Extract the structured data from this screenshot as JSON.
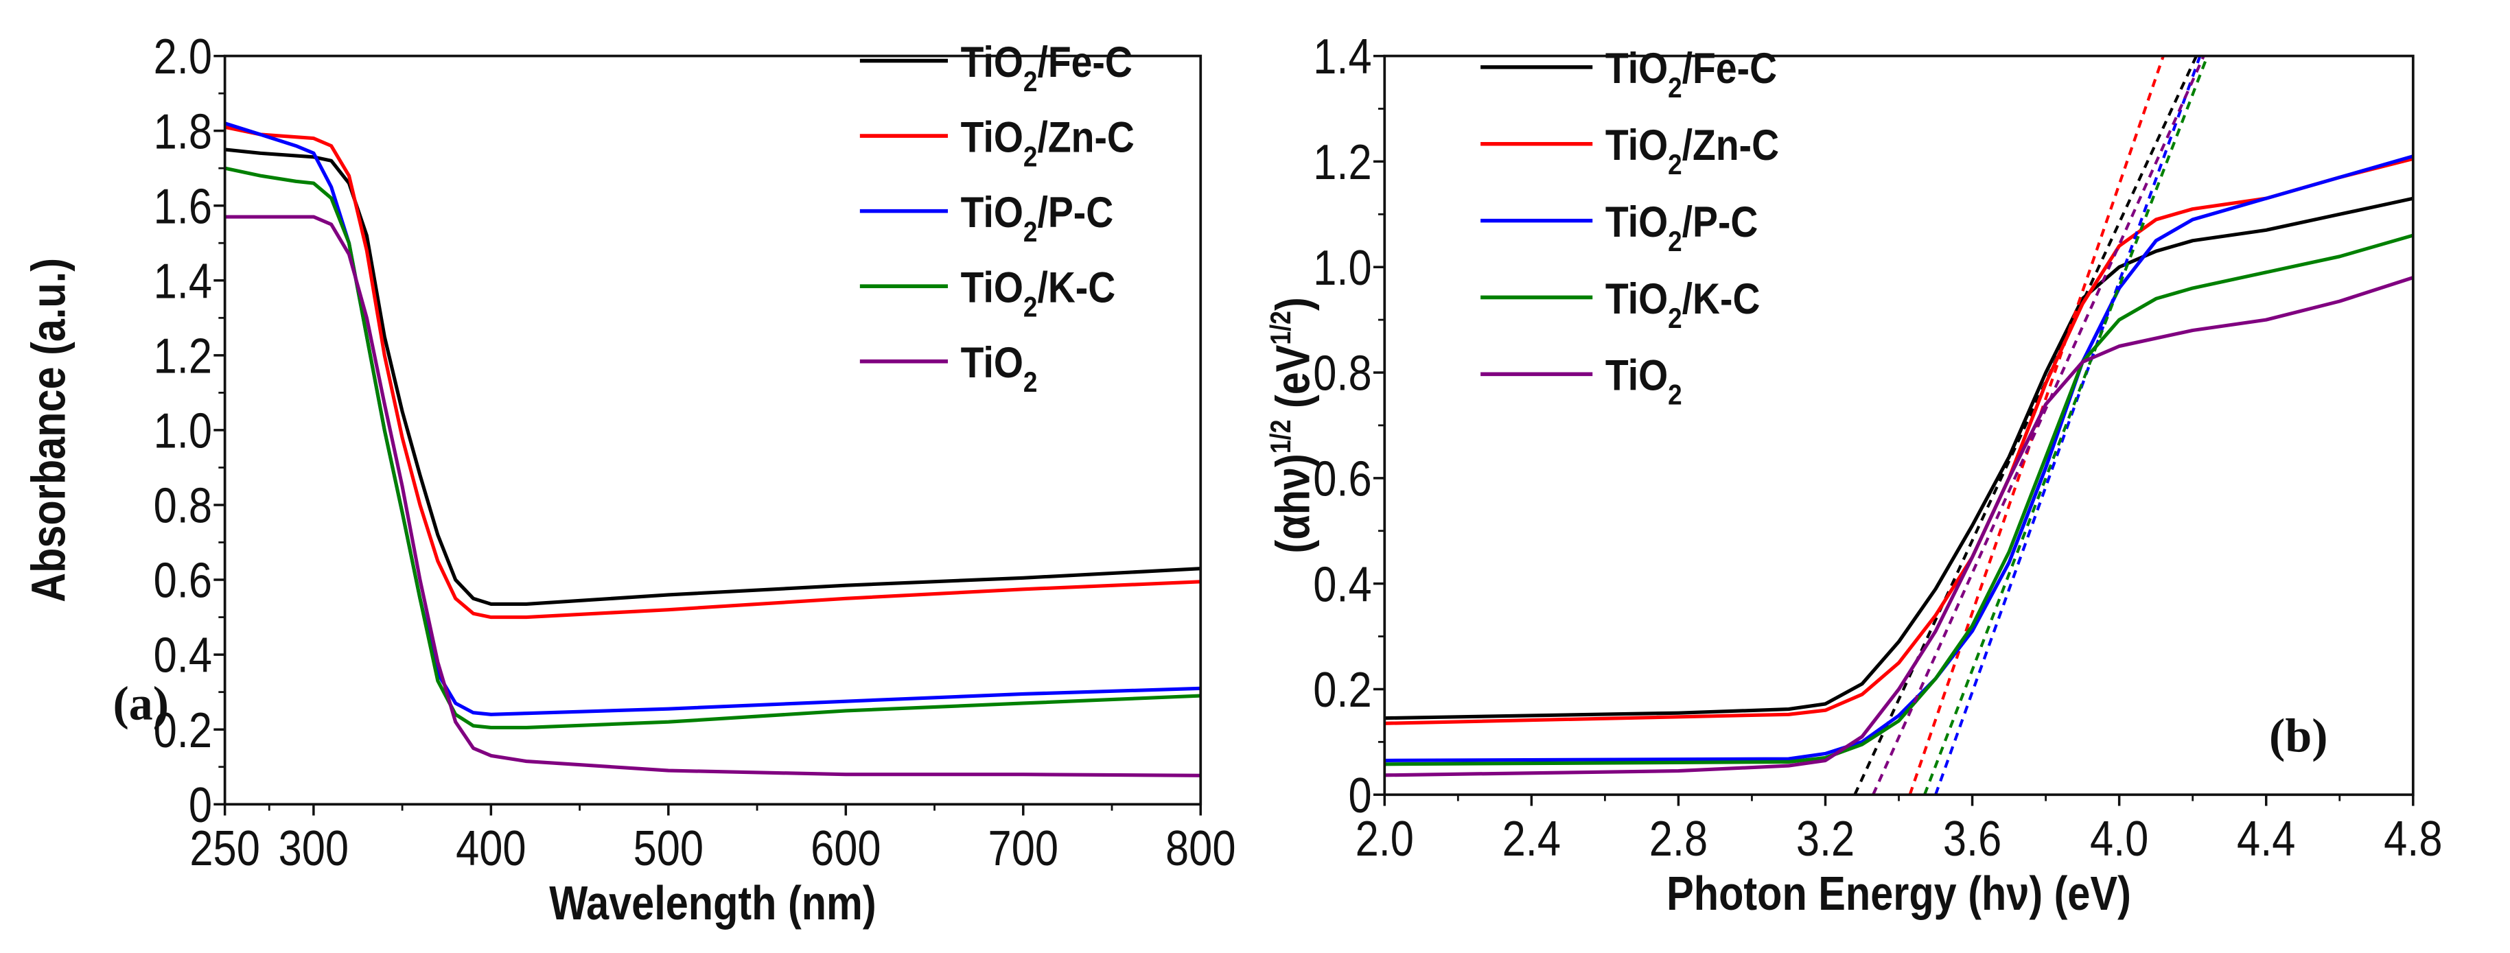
{
  "chart_data": [
    {
      "type": "line",
      "panel_label": "(a)",
      "xlabel": "Wavelength (nm)",
      "ylabel": "Absorbance (a.u.)",
      "xlim": [
        250,
        800
      ],
      "ylim": [
        0,
        2.0
      ],
      "xticks": [
        "250",
        "300",
        "400",
        "500",
        "600",
        "700",
        "800"
      ],
      "xtick_values": [
        250,
        300,
        400,
        500,
        600,
        700,
        800
      ],
      "yticks": [
        "0",
        "0.2",
        "0.4",
        "0.6",
        "0.8",
        "1.0",
        "1.2",
        "1.4",
        "1.6",
        "1.8",
        "2.0"
      ],
      "legend_position": "top-right",
      "series": [
        {
          "name": "TiO2/Fe-C",
          "color": "#000000",
          "x": [
            250,
            270,
            300,
            310,
            320,
            330,
            340,
            350,
            360,
            370,
            380,
            390,
            400,
            420,
            500,
            600,
            700,
            800
          ],
          "y": [
            1.75,
            1.74,
            1.73,
            1.72,
            1.66,
            1.52,
            1.25,
            1.05,
            0.88,
            0.72,
            0.6,
            0.55,
            0.535,
            0.535,
            0.56,
            0.585,
            0.605,
            0.63
          ]
        },
        {
          "name": "TiO2/Zn-C",
          "color": "#ff0000",
          "x": [
            250,
            270,
            300,
            310,
            320,
            330,
            340,
            350,
            360,
            370,
            380,
            390,
            400,
            420,
            500,
            600,
            700,
            800
          ],
          "y": [
            1.81,
            1.79,
            1.78,
            1.76,
            1.68,
            1.48,
            1.2,
            0.98,
            0.8,
            0.65,
            0.55,
            0.51,
            0.5,
            0.5,
            0.52,
            0.55,
            0.575,
            0.595
          ]
        },
        {
          "name": "TiO2/P-C",
          "color": "#0000ff",
          "x": [
            250,
            270,
            290,
            300,
            310,
            320,
            330,
            340,
            350,
            360,
            370,
            380,
            390,
            400,
            420,
            500,
            600,
            700,
            800
          ],
          "y": [
            1.82,
            1.79,
            1.76,
            1.74,
            1.65,
            1.5,
            1.25,
            1.0,
            0.78,
            0.55,
            0.35,
            0.27,
            0.245,
            0.24,
            0.243,
            0.255,
            0.275,
            0.295,
            0.31
          ]
        },
        {
          "name": "TiO2/K-C",
          "color": "#008000",
          "x": [
            250,
            270,
            290,
            300,
            310,
            320,
            330,
            340,
            350,
            360,
            370,
            380,
            390,
            400,
            420,
            500,
            600,
            700,
            800
          ],
          "y": [
            1.7,
            1.68,
            1.665,
            1.66,
            1.62,
            1.5,
            1.25,
            1.0,
            0.78,
            0.55,
            0.33,
            0.24,
            0.21,
            0.205,
            0.205,
            0.22,
            0.25,
            0.27,
            0.29
          ]
        },
        {
          "name": "TiO2",
          "color": "#800080",
          "x": [
            250,
            280,
            300,
            310,
            320,
            330,
            340,
            350,
            360,
            370,
            380,
            390,
            400,
            420,
            500,
            600,
            700,
            800
          ],
          "y": [
            1.57,
            1.57,
            1.57,
            1.55,
            1.47,
            1.3,
            1.07,
            0.85,
            0.6,
            0.38,
            0.22,
            0.15,
            0.13,
            0.115,
            0.09,
            0.08,
            0.08,
            0.077
          ]
        }
      ]
    },
    {
      "type": "line",
      "panel_label": "(b)",
      "xlabel": "Photon Energy (hν) (eV)",
      "ylabel_main": "(αhν)",
      "ylabel_sup": "1/2",
      "ylabel_unit": "(eV",
      "ylabel_unit_sup": "1/2",
      "ylabel_unit_close": ")",
      "xlim": [
        2.0,
        4.8
      ],
      "ylim": [
        0,
        1.4
      ],
      "xticks": [
        "2.0",
        "2.4",
        "2.8",
        "3.2",
        "3.6",
        "4.0",
        "4.4",
        "4.8"
      ],
      "yticks": [
        "0",
        "0.2",
        "0.4",
        "0.6",
        "0.8",
        "1.0",
        "1.2",
        "1.4"
      ],
      "legend_position": "top-left",
      "series": [
        {
          "name": "TiO2/Fe-C",
          "color": "#000000",
          "x": [
            2.0,
            2.8,
            3.1,
            3.2,
            3.3,
            3.4,
            3.5,
            3.6,
            3.7,
            3.8,
            3.9,
            4.0,
            4.1,
            4.2,
            4.4,
            4.6,
            4.8
          ],
          "y": [
            0.145,
            0.155,
            0.162,
            0.172,
            0.21,
            0.29,
            0.39,
            0.51,
            0.64,
            0.8,
            0.94,
            1.0,
            1.03,
            1.05,
            1.07,
            1.1,
            1.13
          ],
          "tangent_x_intercept": 3.28,
          "tangent_x_at_top": 4.21
        },
        {
          "name": "TiO2/Zn-C",
          "color": "#ff0000",
          "x": [
            2.0,
            3.1,
            3.2,
            3.3,
            3.4,
            3.5,
            3.6,
            3.7,
            3.8,
            3.9,
            4.0,
            4.1,
            4.2,
            4.4,
            4.6,
            4.8
          ],
          "y": [
            0.135,
            0.152,
            0.16,
            0.19,
            0.25,
            0.34,
            0.45,
            0.6,
            0.78,
            0.93,
            1.04,
            1.09,
            1.11,
            1.13,
            1.17,
            1.205
          ],
          "tangent_x_intercept": 3.43,
          "tangent_x_at_top": 4.12
        },
        {
          "name": "TiO2/P-C",
          "color": "#0000ff",
          "x": [
            2.0,
            3.1,
            3.2,
            3.3,
            3.4,
            3.5,
            3.6,
            3.7,
            3.8,
            3.9,
            4.0,
            4.1,
            4.2,
            4.4,
            4.6,
            4.8
          ],
          "y": [
            0.065,
            0.068,
            0.078,
            0.1,
            0.15,
            0.22,
            0.31,
            0.44,
            0.62,
            0.82,
            0.96,
            1.05,
            1.09,
            1.13,
            1.17,
            1.21
          ],
          "tangent_x_intercept": 3.5,
          "tangent_x_at_top": 4.22
        },
        {
          "name": "TiO2/K-C",
          "color": "#008000",
          "x": [
            2.0,
            3.1,
            3.2,
            3.3,
            3.4,
            3.5,
            3.6,
            3.7,
            3.8,
            3.9,
            4.0,
            4.1,
            4.2,
            4.4,
            4.6,
            4.8
          ],
          "y": [
            0.058,
            0.062,
            0.07,
            0.095,
            0.14,
            0.22,
            0.32,
            0.46,
            0.64,
            0.82,
            0.9,
            0.94,
            0.96,
            0.99,
            1.02,
            1.06
          ],
          "tangent_x_intercept": 3.47,
          "tangent_x_at_top": 4.24
        },
        {
          "name": "TiO2",
          "color": "#800080",
          "x": [
            2.0,
            2.8,
            3.1,
            3.2,
            3.3,
            3.4,
            3.5,
            3.6,
            3.7,
            3.8,
            3.9,
            4.0,
            4.2,
            4.4,
            4.6,
            4.8
          ],
          "y": [
            0.037,
            0.045,
            0.055,
            0.065,
            0.11,
            0.2,
            0.31,
            0.45,
            0.6,
            0.74,
            0.82,
            0.85,
            0.88,
            0.9,
            0.935,
            0.98
          ],
          "tangent_x_intercept": 3.33,
          "tangent_x_at_top": 4.23
        }
      ]
    }
  ]
}
